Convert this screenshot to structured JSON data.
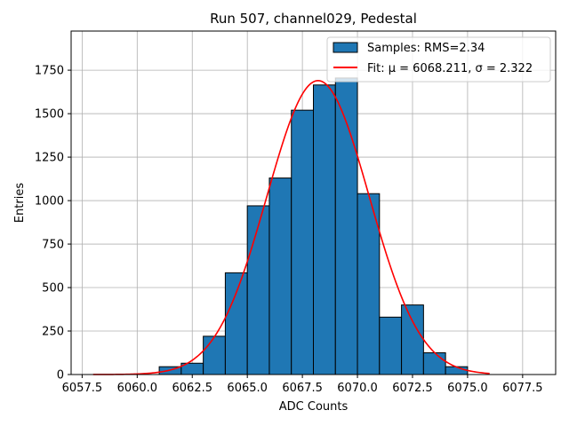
{
  "chart_data": {
    "type": "bar",
    "title": "Run 507, channel029, Pedestal",
    "xlabel": "ADC Counts",
    "ylabel": "Entries",
    "xlim": [
      6057.0,
      6079.0
    ],
    "ylim": [
      0,
      1975
    ],
    "xticks": [
      6057.5,
      6060.0,
      6062.5,
      6065.0,
      6067.5,
      6070.0,
      6072.5,
      6075.0,
      6077.5
    ],
    "xtick_labels": [
      "6057.5",
      "6060.0",
      "6062.5",
      "6065.0",
      "6067.5",
      "6070.0",
      "6072.5",
      "6075.0",
      "6077.5"
    ],
    "yticks": [
      0,
      250,
      500,
      750,
      1000,
      1250,
      1500,
      1750
    ],
    "ytick_labels": [
      "0",
      "250",
      "500",
      "750",
      "1000",
      "1250",
      "1500",
      "1750"
    ],
    "grid": true,
    "legend_position": "top-right",
    "histogram": {
      "name": "Samples: RMS=2.34",
      "bin_edges": [
        6061,
        6062,
        6063,
        6064,
        6065,
        6066,
        6067,
        6068,
        6069,
        6070,
        6071,
        6072,
        6073,
        6074,
        6075,
        6076
      ],
      "values": [
        45,
        65,
        220,
        585,
        970,
        1130,
        1520,
        1665,
        1705,
        1040,
        330,
        400,
        125,
        45,
        0
      ],
      "color": "#1f77b4",
      "edgecolor": "#000000"
    },
    "fit": {
      "name": "Fit: μ = 6068.211, σ = 2.322",
      "mu": 6068.211,
      "sigma": 2.322,
      "amplitude": 1690,
      "x_range": [
        6058,
        6076
      ],
      "color": "#ff0000"
    },
    "legend": {
      "entries": [
        "Samples: RMS=2.34",
        "Fit: μ = 6068.211, σ = 2.322"
      ]
    }
  }
}
